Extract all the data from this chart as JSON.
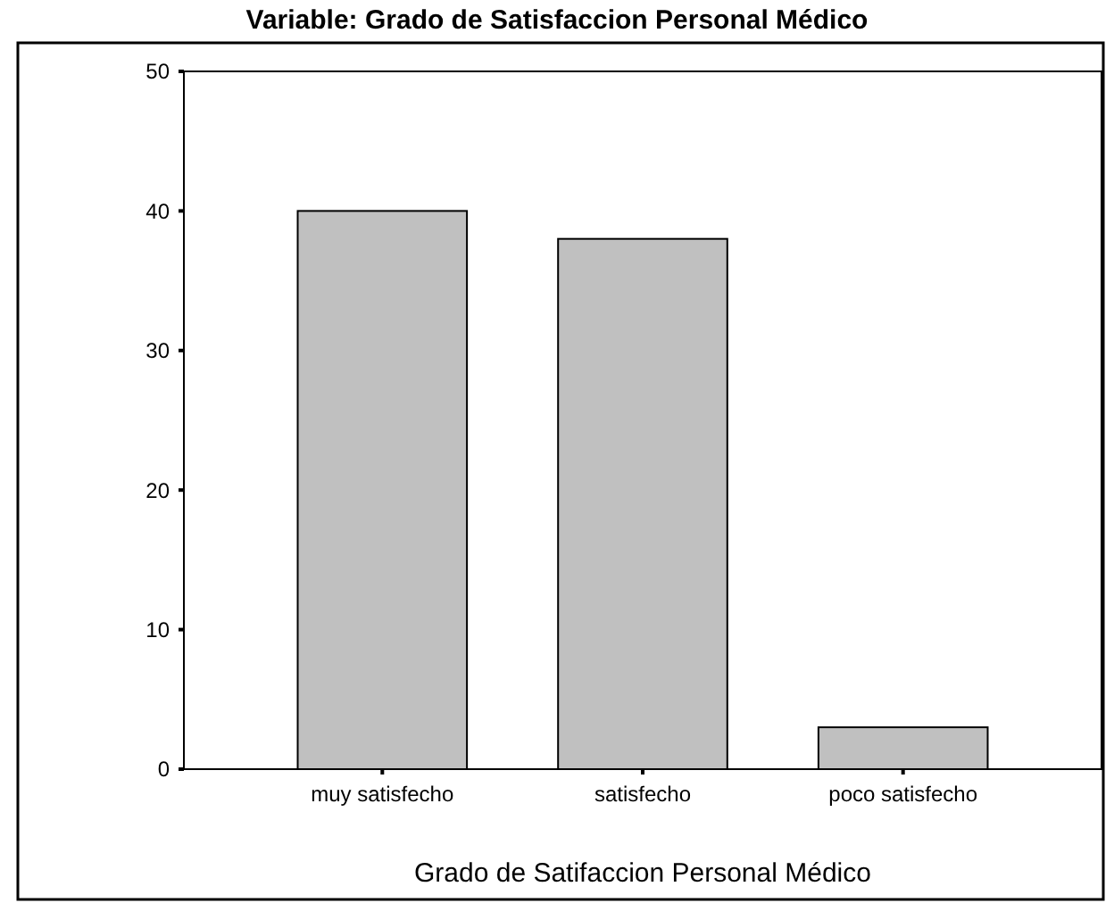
{
  "chart_data": {
    "type": "bar",
    "title": "Variable: Grado de Satisfaccion Personal Médico",
    "xlabel": "Grado de Satifaccion Personal Médico",
    "categories": [
      "muy satisfecho",
      "satisfecho",
      "poco satisfecho"
    ],
    "values": [
      40,
      38,
      3
    ],
    "color": "#c0c0c0",
    "ylim": [
      0,
      50
    ],
    "yticks": [
      0,
      10,
      20,
      30,
      40,
      50
    ]
  }
}
